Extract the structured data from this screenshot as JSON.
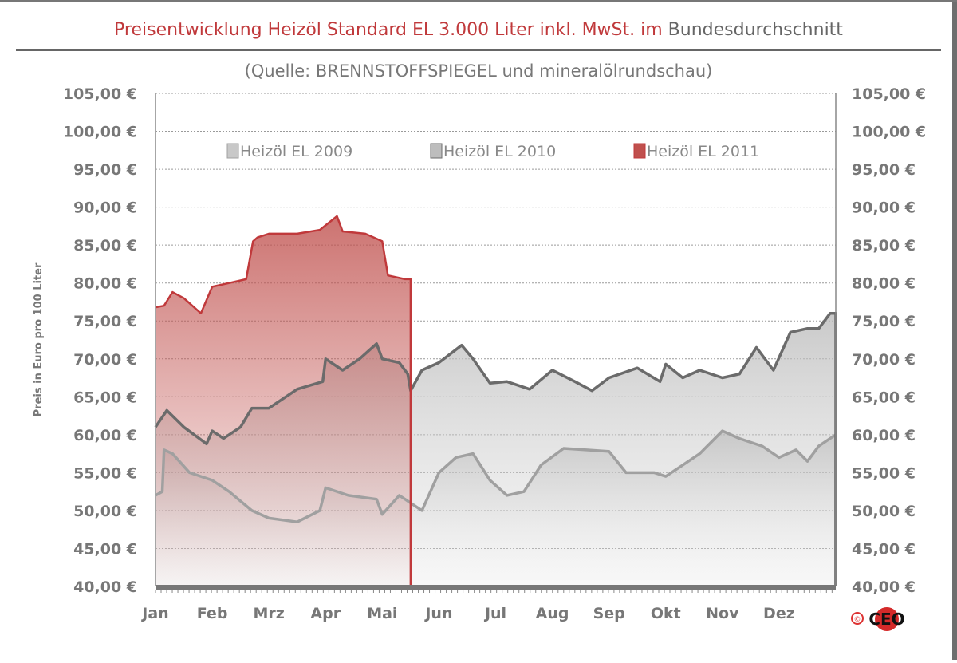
{
  "chart_data": {
    "type": "area",
    "title_red": "Preisentwicklung  Heizöl Standard  EL 3.000 Liter inkl. MwSt. im",
    "title_gray": "Bundesdurchschnitt",
    "subtitle": "(Quelle: BRENNSTOFFSPIEGEL und mineralölrundschau)",
    "ylabel": "Preis in Euro pro 100 Liter",
    "ylim": [
      40,
      105
    ],
    "ytick_step": 5,
    "ytick_labels": [
      "40,00 €",
      "45,00 €",
      "50,00 €",
      "55,00 €",
      "60,00 €",
      "65,00 €",
      "70,00 €",
      "75,00 €",
      "80,00 €",
      "85,00 €",
      "90,00 €",
      "95,00 €",
      "100,00 €",
      "105,00 €"
    ],
    "xlim": [
      0,
      12
    ],
    "x_unit": "months since start of year",
    "categories": [
      "Jan",
      "Feb",
      "Mrz",
      "Apr",
      "Mai",
      "Jun",
      "Jul",
      "Aug",
      "Sep",
      "Okt",
      "Nov",
      "Dez"
    ],
    "grid": true,
    "legend_position": "top",
    "series": [
      {
        "name": "Heizöl EL 2009",
        "color": "#a0a0a0",
        "fill": "#c8c8c8",
        "x": [
          0,
          0.12,
          0.15,
          0.3,
          0.6,
          1.0,
          1.3,
          1.7,
          2.0,
          2.5,
          2.9,
          3.0,
          3.4,
          3.9,
          4.0,
          4.3,
          4.5,
          4.7,
          5.0,
          5.3,
          5.6,
          5.9,
          6.2,
          6.5,
          6.8,
          7.2,
          7.6,
          8.0,
          8.3,
          8.8,
          9.0,
          9.3,
          9.6,
          10.0,
          10.3,
          10.7,
          11.0,
          11.3,
          11.5,
          11.7,
          12.0
        ],
        "y": [
          52,
          52.5,
          58,
          57.5,
          55,
          54,
          52.5,
          50,
          49,
          48.5,
          50,
          53,
          52,
          51.5,
          49.5,
          52,
          51,
          50,
          55,
          57,
          57.5,
          54,
          52,
          52.5,
          56,
          58.2,
          58,
          57.8,
          55,
          55,
          54.5,
          56,
          57.5,
          60.5,
          59.5,
          58.5,
          57,
          58,
          56.5,
          58.5,
          60
        ]
      },
      {
        "name": "Heizöl EL 2010",
        "color": "#6b6b6b",
        "fill": "#bdbdbd",
        "x": [
          0,
          0.2,
          0.5,
          0.9,
          1.0,
          1.2,
          1.5,
          1.7,
          2.0,
          2.3,
          2.5,
          2.95,
          3.0,
          3.3,
          3.6,
          3.9,
          4.0,
          4.3,
          4.45,
          4.5,
          4.7,
          5.0,
          5.4,
          5.6,
          5.9,
          6.2,
          6.6,
          7.0,
          7.4,
          7.7,
          8.0,
          8.5,
          8.9,
          9.0,
          9.3,
          9.6,
          10.0,
          10.3,
          10.6,
          10.9,
          11.2,
          11.5,
          11.7,
          11.9,
          12.0
        ],
        "y": [
          61,
          63.2,
          61,
          58.8,
          60.5,
          59.5,
          61,
          63.5,
          63.5,
          65,
          66,
          67,
          70,
          68.5,
          70,
          72,
          70,
          69.5,
          68,
          65.8,
          68.5,
          69.5,
          71.8,
          70,
          66.8,
          67,
          66,
          68.5,
          67,
          65.8,
          67.5,
          68.8,
          67,
          69.3,
          67.5,
          68.5,
          67.5,
          68,
          71.5,
          68.5,
          73.5,
          74,
          74,
          76,
          76
        ]
      },
      {
        "name": "Heizöl EL 2011",
        "color": "#c0393b",
        "fill": "#c0504d",
        "x": [
          0,
          0.15,
          0.3,
          0.5,
          0.8,
          1.0,
          1.3,
          1.6,
          1.72,
          1.8,
          2.0,
          2.5,
          2.9,
          3.2,
          3.3,
          3.7,
          4.0,
          4.1,
          4.4,
          4.5
        ],
        "y": [
          76.8,
          77,
          78.8,
          78,
          76,
          79.5,
          80,
          80.5,
          85.5,
          86,
          86.5,
          86.5,
          87,
          88.8,
          86.8,
          86.5,
          85.5,
          81,
          80.5,
          80.5
        ]
      }
    ]
  },
  "logo": {
    "copyright": "©",
    "text": "CEO"
  }
}
